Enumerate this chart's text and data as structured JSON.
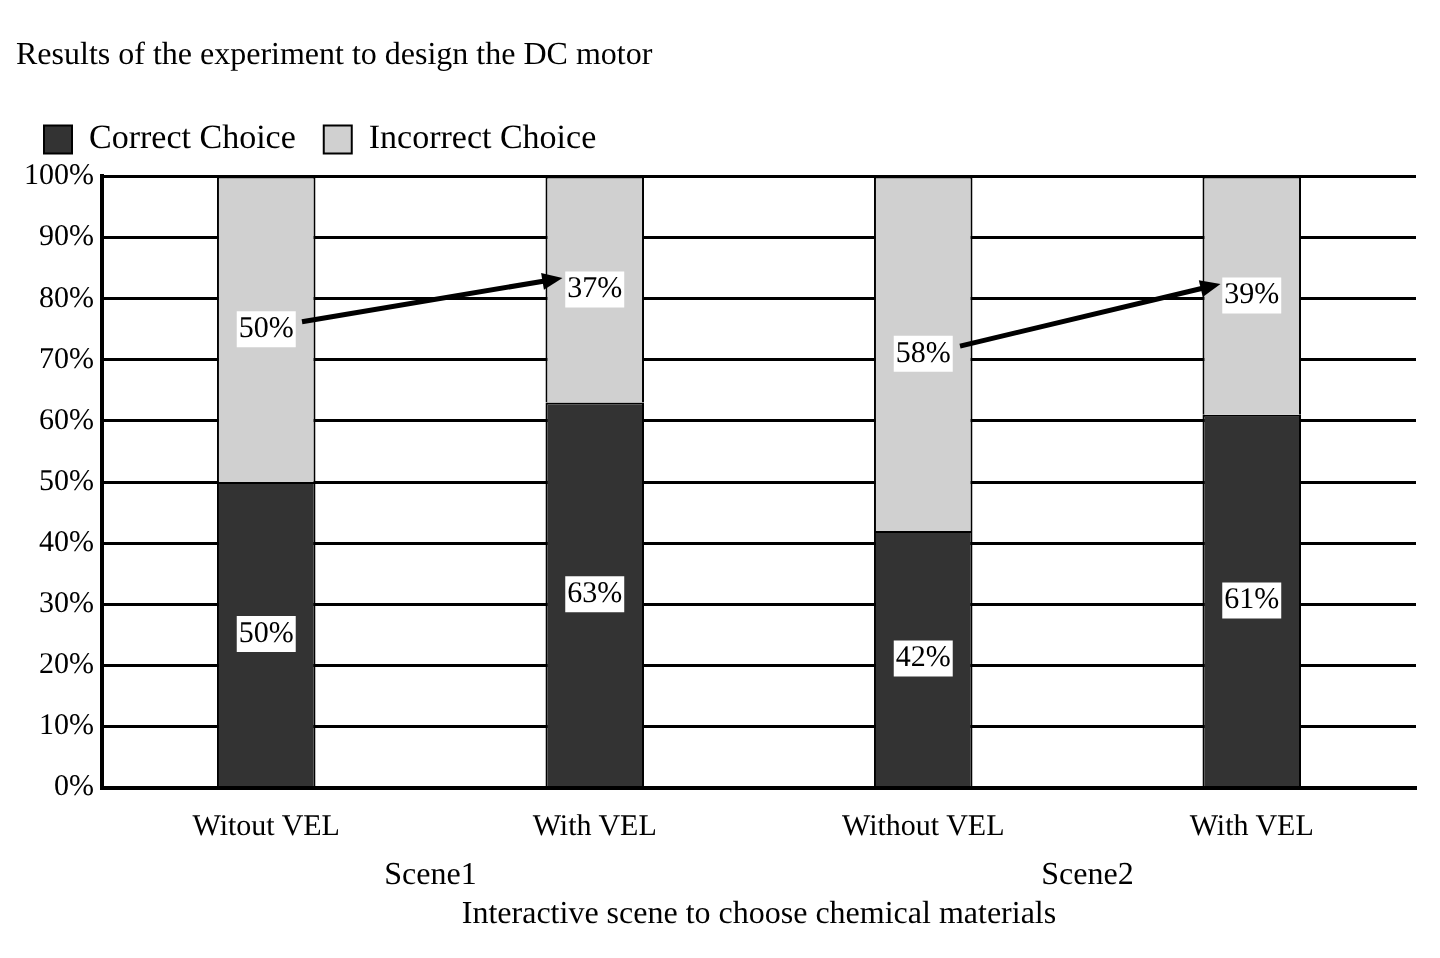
{
  "chart_data": {
    "type": "bar",
    "title": "Results of the experiment to design the DC motor",
    "xlabel": "Interactive scene to choose chemical materials",
    "categories": [
      "Witout VEL",
      "With VEL",
      "Without VEL",
      "With VEL"
    ],
    "stacked": true,
    "series": [
      {
        "name": "Correct Choice",
        "color": "#333333",
        "values": [
          50,
          63,
          42,
          61
        ],
        "value_labels": [
          "50%",
          "63%",
          "42%",
          "61%"
        ]
      },
      {
        "name": "Incorrect Choice",
        "color": "#d0d0d0",
        "values": [
          50,
          37,
          58,
          39
        ],
        "value_labels": [
          "50%",
          "37%",
          "58%",
          "39%"
        ]
      }
    ],
    "ylim": [
      0,
      100
    ],
    "yticks": [
      {
        "value": 0,
        "label": "0%"
      },
      {
        "value": 10,
        "label": "10%"
      },
      {
        "value": 20,
        "label": "20%"
      },
      {
        "value": 30,
        "label": "30%"
      },
      {
        "value": 40,
        "label": "40%"
      },
      {
        "value": 50,
        "label": "50%"
      },
      {
        "value": 60,
        "label": "60%"
      },
      {
        "value": 70,
        "label": "70%"
      },
      {
        "value": 80,
        "label": "80%"
      },
      {
        "value": 90,
        "label": "90%"
      },
      {
        "value": 100,
        "label": "100%"
      }
    ],
    "grid": "y",
    "legend": "top",
    "annotations": [
      "Scene1",
      "Scene2"
    ]
  }
}
